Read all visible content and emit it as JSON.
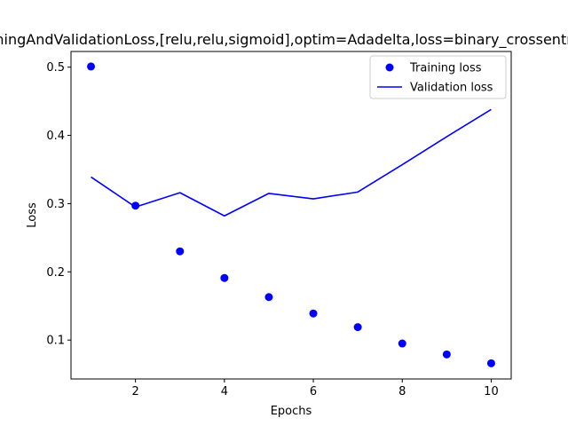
{
  "chart_data": {
    "type": "line",
    "title": "TrainingAndValidationLoss,[relu,relu,sigmoid],optim=Adadelta,loss=binary_crossentropy",
    "xlabel": "Epochs",
    "ylabel": "Loss",
    "x": [
      1,
      2,
      3,
      4,
      5,
      6,
      7,
      8,
      9,
      10
    ],
    "xlim": [
      0.55,
      10.45
    ],
    "ylim": [
      0.043,
      0.523
    ],
    "xticks": [
      2,
      4,
      6,
      8,
      10
    ],
    "yticks": [
      0.1,
      0.2,
      0.3,
      0.4,
      0.5
    ],
    "grid": false,
    "legend_position": "top-right",
    "series": [
      {
        "name": "Training loss",
        "style": "points",
        "color": "#0000ff",
        "values": [
          0.501,
          0.297,
          0.23,
          0.191,
          0.163,
          0.139,
          0.119,
          0.095,
          0.079,
          0.066
        ]
      },
      {
        "name": "Validation loss",
        "style": "line",
        "color": "#0000ff",
        "values": [
          0.339,
          0.295,
          0.316,
          0.282,
          0.315,
          0.307,
          0.317,
          0.357,
          0.398,
          0.438
        ]
      }
    ]
  }
}
